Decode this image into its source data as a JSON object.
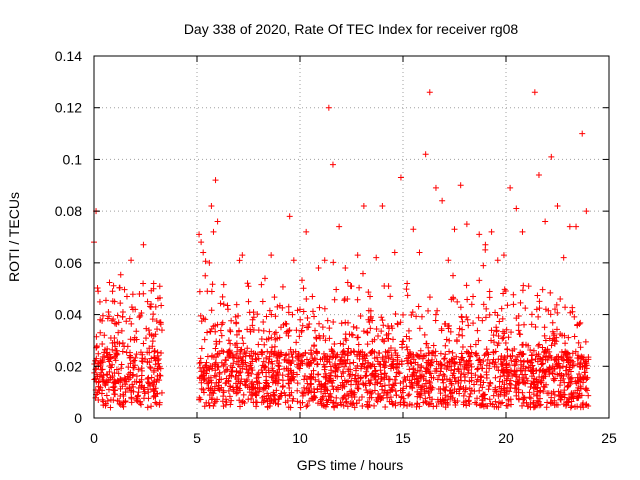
{
  "chart_data": {
    "type": "scatter",
    "title": "Day 338 of 2020, Rate Of TEC Index for receiver rg08",
    "xlabel": "GPS time / hours",
    "ylabel": "ROTI / TECUs",
    "xlim": [
      0,
      25
    ],
    "ylim": [
      0,
      0.14
    ],
    "x_ticks": [
      "0",
      "5",
      "10",
      "15",
      "20",
      "25"
    ],
    "y_ticks": [
      "0",
      "0.02",
      "0.04",
      "0.06",
      "0.08",
      "0.1",
      "0.12",
      "0.14"
    ],
    "grid": true,
    "marker": "+",
    "color": "#ff0000",
    "series": [
      {
        "x": [
          0.0,
          0.1,
          0.2,
          0.3,
          0.5,
          0.7,
          0.9,
          1.0,
          1.2,
          1.4,
          1.6,
          1.8,
          2.0,
          2.2,
          2.4,
          2.6,
          2.8,
          3.0,
          3.2,
          3.3,
          5.1,
          5.2,
          5.3,
          5.4,
          5.5,
          5.6,
          5.7,
          5.8,
          5.9,
          6.0,
          6.3,
          6.6,
          6.9,
          7.2,
          7.5,
          7.7,
          8.0,
          8.3,
          8.6,
          8.9,
          9.2,
          9.5,
          9.7,
          10.0,
          10.3,
          10.6,
          10.9,
          11.2,
          11.4,
          11.6,
          11.9,
          12.2,
          12.5,
          12.8,
          13.1,
          13.4,
          13.7,
          14.0,
          14.3,
          14.6,
          14.9,
          15.2,
          15.5,
          15.8,
          16.1,
          16.3,
          16.6,
          16.9,
          17.2,
          17.5,
          17.8,
          18.1,
          18.4,
          18.7,
          19.0,
          19.3,
          19.6,
          19.9,
          20.2,
          20.5,
          20.8,
          21.1,
          21.4,
          21.6,
          21.9,
          22.2,
          22.5,
          22.8,
          23.1,
          23.4,
          23.7,
          23.9
        ],
        "y": [
          0.068,
          0.08,
          0.049,
          0.038,
          0.032,
          0.041,
          0.049,
          0.045,
          0.037,
          0.029,
          0.047,
          0.061,
          0.042,
          0.039,
          0.067,
          0.045,
          0.032,
          0.043,
          0.037,
          0.034,
          0.071,
          0.068,
          0.064,
          0.055,
          0.049,
          0.06,
          0.082,
          0.072,
          0.092,
          0.076,
          0.044,
          0.034,
          0.037,
          0.063,
          0.045,
          0.038,
          0.034,
          0.054,
          0.063,
          0.043,
          0.036,
          0.078,
          0.061,
          0.042,
          0.072,
          0.047,
          0.058,
          0.061,
          0.12,
          0.098,
          0.074,
          0.058,
          0.051,
          0.063,
          0.082,
          0.047,
          0.062,
          0.082,
          0.051,
          0.064,
          0.093,
          0.052,
          0.073,
          0.064,
          0.102,
          0.126,
          0.089,
          0.084,
          0.061,
          0.073,
          0.09,
          0.075,
          0.047,
          0.071,
          0.067,
          0.072,
          0.061,
          0.063,
          0.089,
          0.081,
          0.072,
          0.051,
          0.126,
          0.094,
          0.076,
          0.101,
          0.082,
          0.062,
          0.074,
          0.074,
          0.11,
          0.08
        ]
      }
    ]
  }
}
